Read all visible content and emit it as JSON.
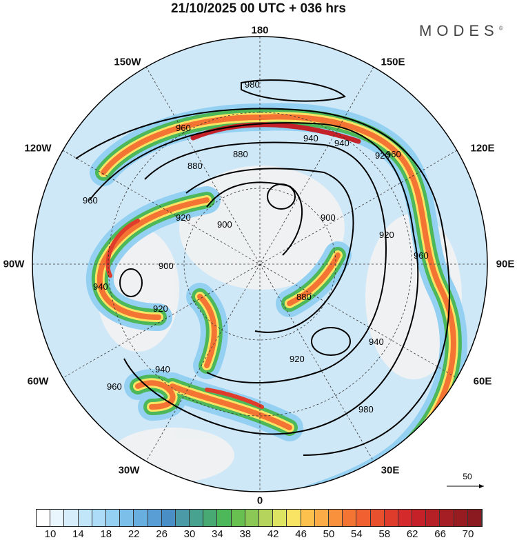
{
  "title": "21/10/2025  00 UTC  + 036 hrs",
  "logo": "MODES",
  "logo_mark": "©",
  "longitude_labels": {
    "lon_180": "180",
    "lon_150e": "150E",
    "lon_120e": "120E",
    "lon_90e": "90E",
    "lon_60e": "60E",
    "lon_30e": "30E",
    "lon_0": "0",
    "lon_30w": "30W",
    "lon_60w": "60W",
    "lon_90w": "90W",
    "lon_120w": "120W",
    "lon_150w": "150W"
  },
  "contour_labels": [
    "980",
    "960",
    "940",
    "920",
    "900",
    "880",
    "880",
    "900",
    "920",
    "940",
    "960",
    "960",
    "940",
    "920",
    "900",
    "920",
    "940",
    "960",
    "880",
    "920",
    "940",
    "960",
    "980"
  ],
  "vector_reference": "50",
  "colorbar": {
    "ticks": [
      "10",
      "14",
      "18",
      "22",
      "26",
      "30",
      "34",
      "38",
      "42",
      "46",
      "50",
      "54",
      "58",
      "62",
      "66",
      "70"
    ],
    "colors": [
      "#ffffff",
      "#eaf6fd",
      "#d6eefb",
      "#c2e6f9",
      "#acdcf7",
      "#94d0f2",
      "#7cc0ea",
      "#68aedf",
      "#5a9ed6",
      "#4a8ec6",
      "#4a9aa8",
      "#48a290",
      "#48aa72",
      "#4cb85a",
      "#68c050",
      "#8cc856",
      "#b4d45c",
      "#dce462",
      "#fae464",
      "#fcc04c",
      "#fbac46",
      "#f8903c",
      "#f47434",
      "#f06030",
      "#e8502e",
      "#e03c2c",
      "#d42a2c",
      "#c42228",
      "#b42026",
      "#a41e24",
      "#961c22",
      "#8a1a20"
    ]
  }
}
